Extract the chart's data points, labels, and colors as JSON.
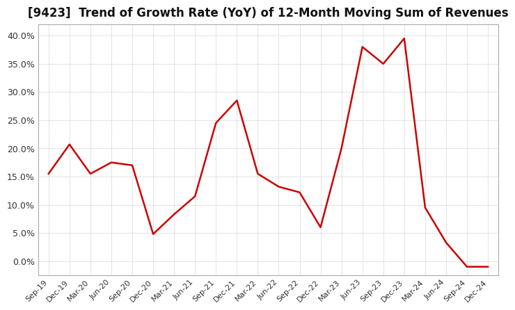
{
  "title": "[9423]  Trend of Growth Rate (YoY) of 12-Month Moving Sum of Revenues",
  "title_fontsize": 12,
  "line_color": "#cc0000",
  "background_color": "#ffffff",
  "plot_bg_color": "#ffffff",
  "border_color": "#aaaaaa",
  "grid_color": "#aaaaaa",
  "ylim": [
    -0.025,
    0.42
  ],
  "yticks": [
    0.0,
    0.05,
    0.1,
    0.15,
    0.2,
    0.25,
    0.3,
    0.35,
    0.4
  ],
  "x_labels": [
    "Sep-19",
    "Dec-19",
    "Mar-20",
    "Jun-20",
    "Sep-20",
    "Dec-20",
    "Mar-21",
    "Jun-21",
    "Sep-21",
    "Dec-21",
    "Mar-22",
    "Jun-22",
    "Sep-22",
    "Dec-22",
    "Mar-23",
    "Jun-23",
    "Sep-23",
    "Dec-23",
    "Mar-24",
    "Jun-24",
    "Sep-24",
    "Dec-24"
  ],
  "y_values": [
    0.155,
    0.207,
    0.155,
    0.175,
    0.17,
    0.048,
    0.083,
    0.115,
    0.245,
    0.285,
    0.155,
    0.132,
    0.122,
    0.06,
    0.2,
    0.38,
    0.35,
    0.395,
    0.095,
    0.033,
    -0.01,
    -0.01
  ]
}
